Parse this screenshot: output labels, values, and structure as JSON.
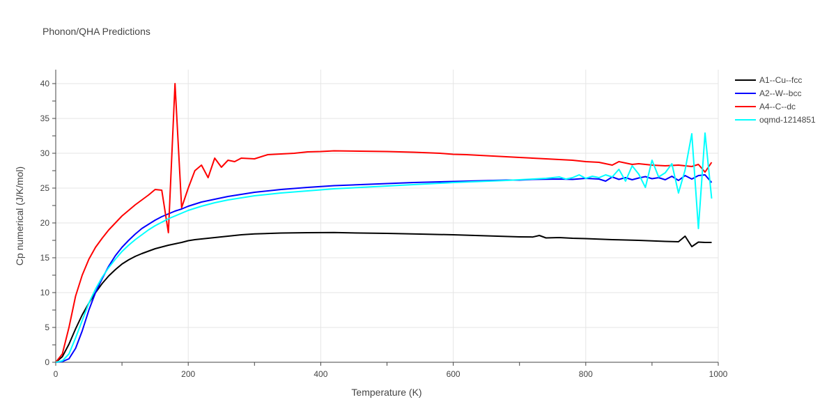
{
  "chart_data": {
    "type": "line",
    "title": "Phonon/QHA Predictions",
    "xlabel": "Temperature (K)",
    "ylabel": "Cp numerical (J/K/mol)",
    "xlim": [
      0,
      1000
    ],
    "ylim": [
      0,
      42
    ],
    "xticks": [
      0,
      200,
      400,
      600,
      800,
      1000
    ],
    "yticks": [
      0,
      5,
      10,
      15,
      20,
      25,
      30,
      35,
      40
    ],
    "grid": true,
    "legend_position": "top-right",
    "series": [
      {
        "name": "A1--Cu--fcc",
        "color": "#000000",
        "x": [
          0,
          10,
          20,
          30,
          40,
          50,
          60,
          70,
          80,
          90,
          100,
          110,
          120,
          130,
          140,
          150,
          160,
          170,
          180,
          190,
          200,
          210,
          220,
          230,
          240,
          260,
          280,
          300,
          340,
          380,
          420,
          460,
          500,
          550,
          600,
          650,
          700,
          720,
          730,
          740,
          760,
          780,
          800,
          840,
          880,
          920,
          940,
          950,
          960,
          970,
          980,
          990
        ],
        "y": [
          0,
          0.8,
          2.6,
          4.8,
          6.8,
          8.5,
          10.0,
          11.3,
          12.4,
          13.3,
          14.1,
          14.7,
          15.2,
          15.6,
          15.95,
          16.3,
          16.55,
          16.8,
          17.0,
          17.2,
          17.45,
          17.6,
          17.7,
          17.8,
          17.9,
          18.1,
          18.3,
          18.42,
          18.55,
          18.6,
          18.62,
          18.55,
          18.5,
          18.4,
          18.3,
          18.15,
          18.0,
          17.98,
          18.2,
          17.85,
          17.9,
          17.8,
          17.75,
          17.6,
          17.5,
          17.35,
          17.3,
          18.1,
          16.6,
          17.25,
          17.2,
          17.2
        ]
      },
      {
        "name": "A2--W--bcc",
        "color": "#0000ff",
        "x": [
          0,
          10,
          20,
          30,
          40,
          50,
          60,
          70,
          80,
          90,
          100,
          110,
          120,
          130,
          140,
          150,
          160,
          170,
          180,
          190,
          200,
          220,
          240,
          260,
          280,
          300,
          340,
          380,
          420,
          460,
          500,
          540,
          560,
          580,
          600,
          640,
          680,
          700,
          720,
          760,
          780,
          800,
          820,
          830,
          840,
          850,
          860,
          870,
          880,
          890,
          900,
          910,
          920,
          930,
          940,
          950,
          960,
          970,
          980,
          990
        ],
        "y": [
          0,
          0.1,
          0.5,
          2.0,
          4.5,
          7.5,
          10.0,
          12.0,
          13.8,
          15.3,
          16.5,
          17.5,
          18.4,
          19.2,
          19.8,
          20.4,
          20.9,
          21.3,
          21.7,
          22.0,
          22.4,
          23.0,
          23.4,
          23.8,
          24.1,
          24.4,
          24.8,
          25.1,
          25.35,
          25.5,
          25.65,
          25.8,
          25.85,
          25.9,
          25.95,
          26.05,
          26.15,
          26.15,
          26.25,
          26.3,
          26.25,
          26.4,
          26.3,
          26.0,
          26.6,
          26.25,
          26.5,
          26.2,
          26.45,
          26.65,
          26.35,
          26.5,
          26.2,
          26.7,
          26.1,
          26.8,
          26.3,
          26.8,
          26.9,
          25.8
        ]
      },
      {
        "name": "A4--C--dc",
        "color": "#ff0000",
        "x": [
          0,
          10,
          20,
          30,
          40,
          50,
          60,
          70,
          80,
          90,
          100,
          110,
          120,
          130,
          140,
          150,
          160,
          170,
          180,
          190,
          200,
          210,
          220,
          230,
          240,
          250,
          260,
          270,
          280,
          300,
          320,
          340,
          360,
          380,
          400,
          420,
          460,
          500,
          540,
          580,
          600,
          620,
          660,
          700,
          740,
          780,
          800,
          820,
          840,
          850,
          860,
          870,
          880,
          900,
          920,
          940,
          960,
          970,
          980,
          990
        ],
        "y": [
          0,
          1.2,
          5.0,
          9.5,
          12.5,
          14.8,
          16.5,
          17.8,
          19.0,
          20.0,
          21.0,
          21.8,
          22.6,
          23.3,
          24.0,
          24.8,
          24.7,
          18.6,
          40.0,
          22.2,
          25.0,
          27.5,
          28.3,
          26.5,
          29.3,
          28.0,
          29.0,
          28.8,
          29.3,
          29.2,
          29.8,
          29.9,
          30.0,
          30.2,
          30.25,
          30.35,
          30.3,
          30.25,
          30.15,
          30.0,
          29.85,
          29.8,
          29.6,
          29.4,
          29.2,
          29.0,
          28.8,
          28.7,
          28.3,
          28.8,
          28.6,
          28.4,
          28.5,
          28.3,
          28.2,
          28.3,
          28.1,
          28.4,
          27.3,
          28.7
        ]
      },
      {
        "name": "oqmd-1214851",
        "color": "#00ffff",
        "x": [
          0,
          10,
          20,
          30,
          40,
          50,
          60,
          70,
          80,
          90,
          100,
          110,
          120,
          130,
          140,
          150,
          160,
          170,
          180,
          190,
          200,
          220,
          240,
          260,
          280,
          300,
          340,
          380,
          420,
          460,
          500,
          540,
          580,
          600,
          640,
          680,
          700,
          720,
          740,
          760,
          770,
          780,
          790,
          800,
          810,
          820,
          830,
          840,
          850,
          860,
          870,
          880,
          890,
          900,
          910,
          920,
          930,
          940,
          950,
          960,
          970,
          980,
          990
        ],
        "y": [
          0,
          0.2,
          1.2,
          3.5,
          6.0,
          8.5,
          10.5,
          12.2,
          13.6,
          14.8,
          15.9,
          16.8,
          17.6,
          18.3,
          19.0,
          19.6,
          20.1,
          20.6,
          21.0,
          21.4,
          21.8,
          22.4,
          22.9,
          23.3,
          23.6,
          23.9,
          24.3,
          24.6,
          24.9,
          25.1,
          25.3,
          25.5,
          25.7,
          25.8,
          25.95,
          26.1,
          26.2,
          26.3,
          26.4,
          26.6,
          26.3,
          26.5,
          26.9,
          26.4,
          26.7,
          26.5,
          26.9,
          26.6,
          27.7,
          26.0,
          28.2,
          27.0,
          25.1,
          29.0,
          26.6,
          27.2,
          28.5,
          24.3,
          27.6,
          32.8,
          19.2,
          32.9,
          23.5
        ]
      }
    ]
  }
}
